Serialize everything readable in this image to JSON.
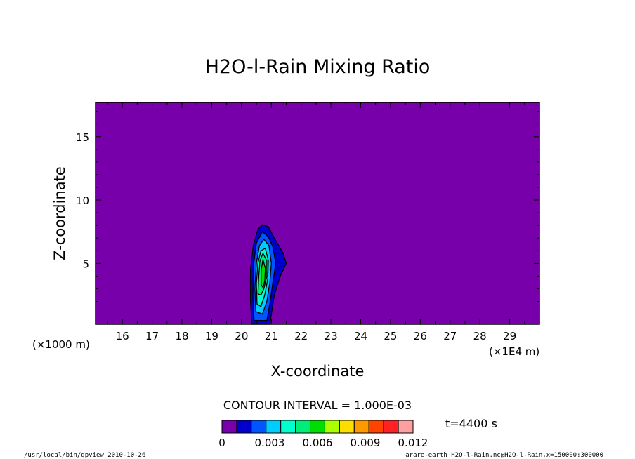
{
  "chart_data": {
    "type": "heatmap",
    "title": "H2O-l-Rain Mixing Ratio",
    "xlabel": "X-coordinate",
    "ylabel": "Z-coordinate",
    "x_unit_left": "(×1000 m)",
    "x_unit_right": "(×1E4 m)",
    "xlim": [
      15.1,
      30.0
    ],
    "ylim": [
      0.2,
      17.7
    ],
    "x_ticks": [
      16,
      17,
      18,
      19,
      20,
      21,
      22,
      23,
      24,
      25,
      26,
      27,
      28,
      29
    ],
    "y_ticks": [
      5,
      10,
      15
    ],
    "contour_interval_label": "CONTOUR INTERVAL = 1.000E-03",
    "time_label": "t=4400 s",
    "colorbar": {
      "colors": [
        "#7700aa",
        "#0000cc",
        "#0055ff",
        "#00ccff",
        "#00ffcc",
        "#00ee77",
        "#00dd00",
        "#aaff00",
        "#ffdd00",
        "#ff9900",
        "#ff4400",
        "#ff2222",
        "#ffa0a0"
      ],
      "tick_labels": [
        "0",
        "0.003",
        "0.006",
        "0.009",
        "0.012"
      ],
      "tick_values": [
        0,
        0.003,
        0.006,
        0.009,
        0.012
      ]
    },
    "levels": [
      {
        "level": 0.001,
        "color": "#0000cc",
        "points": [
          [
            20.35,
            0.2
          ],
          [
            20.3,
            2.0
          ],
          [
            20.3,
            4.5
          ],
          [
            20.4,
            6.5
          ],
          [
            20.55,
            7.7
          ],
          [
            20.7,
            8.05
          ],
          [
            20.9,
            7.9
          ],
          [
            21.1,
            7.0
          ],
          [
            21.25,
            6.4
          ],
          [
            21.4,
            5.8
          ],
          [
            21.5,
            5.0
          ],
          [
            21.3,
            4.0
          ],
          [
            21.1,
            2.5
          ],
          [
            21.0,
            1.0
          ],
          [
            20.95,
            0.2
          ]
        ]
      },
      {
        "level": 0.002,
        "color": "#0055ff",
        "points": [
          [
            20.42,
            0.5
          ],
          [
            20.38,
            2.5
          ],
          [
            20.4,
            4.8
          ],
          [
            20.5,
            6.6
          ],
          [
            20.7,
            7.5
          ],
          [
            20.9,
            7.1
          ],
          [
            21.05,
            6.3
          ],
          [
            21.15,
            5.0
          ],
          [
            21.05,
            3.5
          ],
          [
            20.95,
            1.8
          ],
          [
            20.85,
            0.5
          ]
        ]
      },
      {
        "level": 0.003,
        "color": "#00ccff",
        "points": [
          [
            20.48,
            1.2
          ],
          [
            20.45,
            3.0
          ],
          [
            20.5,
            5.0
          ],
          [
            20.6,
            6.4
          ],
          [
            20.75,
            6.9
          ],
          [
            20.92,
            6.4
          ],
          [
            21.0,
            5.0
          ],
          [
            20.95,
            3.5
          ],
          [
            20.85,
            2.0
          ],
          [
            20.7,
            1.0
          ]
        ]
      },
      {
        "level": 0.004,
        "color": "#00ffcc",
        "points": [
          [
            20.52,
            1.8
          ],
          [
            20.5,
            3.4
          ],
          [
            20.55,
            5.0
          ],
          [
            20.65,
            6.0
          ],
          [
            20.8,
            6.2
          ],
          [
            20.9,
            5.2
          ],
          [
            20.88,
            3.8
          ],
          [
            20.78,
            2.5
          ],
          [
            20.65,
            1.6
          ]
        ]
      },
      {
        "level": 0.005,
        "color": "#00ee77",
        "points": [
          [
            20.55,
            2.6
          ],
          [
            20.58,
            4.0
          ],
          [
            20.62,
            5.2
          ],
          [
            20.72,
            5.8
          ],
          [
            20.85,
            5.2
          ],
          [
            20.85,
            4.0
          ],
          [
            20.75,
            3.0
          ],
          [
            20.65,
            2.5
          ]
        ]
      },
      {
        "level": 0.006,
        "color": "#00dd00",
        "points": [
          [
            20.66,
            3.3
          ],
          [
            20.66,
            4.5
          ],
          [
            20.72,
            5.3
          ],
          [
            20.8,
            4.6
          ],
          [
            20.78,
            3.6
          ],
          [
            20.72,
            3.1
          ]
        ]
      }
    ],
    "grid": false,
    "legend": "colorbar-bottom"
  },
  "footer": {
    "left": "/usr/local/bin/gpview  2010-10-26",
    "right": "arare-earth_H2O-l-Rain.nc@H2O-l-Rain,x=150000:300000"
  }
}
